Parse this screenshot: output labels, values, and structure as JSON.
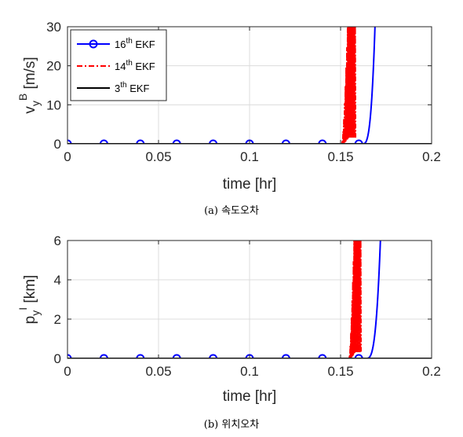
{
  "chart_data": [
    {
      "id": "a",
      "type": "line",
      "caption": "(a) 속도오차",
      "ylabel_main": "v",
      "ylabel_sup": "B",
      "ylabel_sub": "y",
      "ylabel_unit": " [m/s]",
      "xlabel": "time [hr]",
      "xlim": [
        0,
        0.2
      ],
      "ylim": [
        0,
        30
      ],
      "xticks": [
        0,
        0.05,
        0.1,
        0.15,
        0.2
      ],
      "xtick_labels": [
        "0",
        "0.05",
        "0.1",
        "0.15",
        "0.2"
      ],
      "yticks": [
        0,
        10,
        20,
        30
      ],
      "ytick_labels": [
        "0",
        "10",
        "20",
        "30"
      ],
      "grid": true,
      "legend_position": "top-left",
      "series": [
        {
          "name": "16th EKF",
          "name_base": "16",
          "name_sup": "th",
          "name_tail": " EKF",
          "color": "#0000ff",
          "style": "solid",
          "marker": "circle",
          "divergence_start": 0.162,
          "end_x": 0.169,
          "marker_x": [
            0,
            0.02,
            0.04,
            0.06,
            0.08,
            0.1,
            0.12,
            0.14,
            0.16
          ]
        },
        {
          "name": "14th EKF",
          "name_base": "14",
          "name_sup": "th",
          "name_tail": " EKF",
          "color": "#ff0000",
          "style": "dashdot",
          "marker": "none",
          "oscillation_start": 0.151,
          "oscillation_end": 0.158
        },
        {
          "name": "3th EKF",
          "name_base": "3",
          "name_sup": "th",
          "name_tail": " EKF",
          "color": "#000000",
          "style": "solid",
          "marker": "none",
          "x_range": [
            0,
            0.2
          ],
          "value": 0
        }
      ]
    },
    {
      "id": "b",
      "type": "line",
      "caption": "(b) 위치오차",
      "ylabel_main": "p",
      "ylabel_sup": "I",
      "ylabel_sub": "y",
      "ylabel_unit": " [km]",
      "xlabel": "time [hr]",
      "xlim": [
        0,
        0.2
      ],
      "ylim": [
        0,
        6
      ],
      "xticks": [
        0,
        0.05,
        0.1,
        0.15,
        0.2
      ],
      "xtick_labels": [
        "0",
        "0.05",
        "0.1",
        "0.15",
        "0.2"
      ],
      "yticks": [
        0,
        2,
        4,
        6
      ],
      "ytick_labels": [
        "0",
        "2",
        "4",
        "6"
      ],
      "grid": true,
      "series": [
        {
          "name": "16th EKF",
          "color": "#0000ff",
          "style": "solid",
          "marker": "circle",
          "divergence_start": 0.164,
          "end_x": 0.172,
          "marker_x": [
            0,
            0.02,
            0.04,
            0.06,
            0.08,
            0.1,
            0.12,
            0.14,
            0.16
          ]
        },
        {
          "name": "14th EKF",
          "color": "#ff0000",
          "style": "dashdot",
          "marker": "none",
          "oscillation_start": 0.155,
          "oscillation_end": 0.161
        },
        {
          "name": "3th EKF",
          "color": "#000000",
          "style": "solid",
          "marker": "none",
          "x_range": [
            0,
            0.2
          ],
          "value": 0
        }
      ]
    }
  ]
}
